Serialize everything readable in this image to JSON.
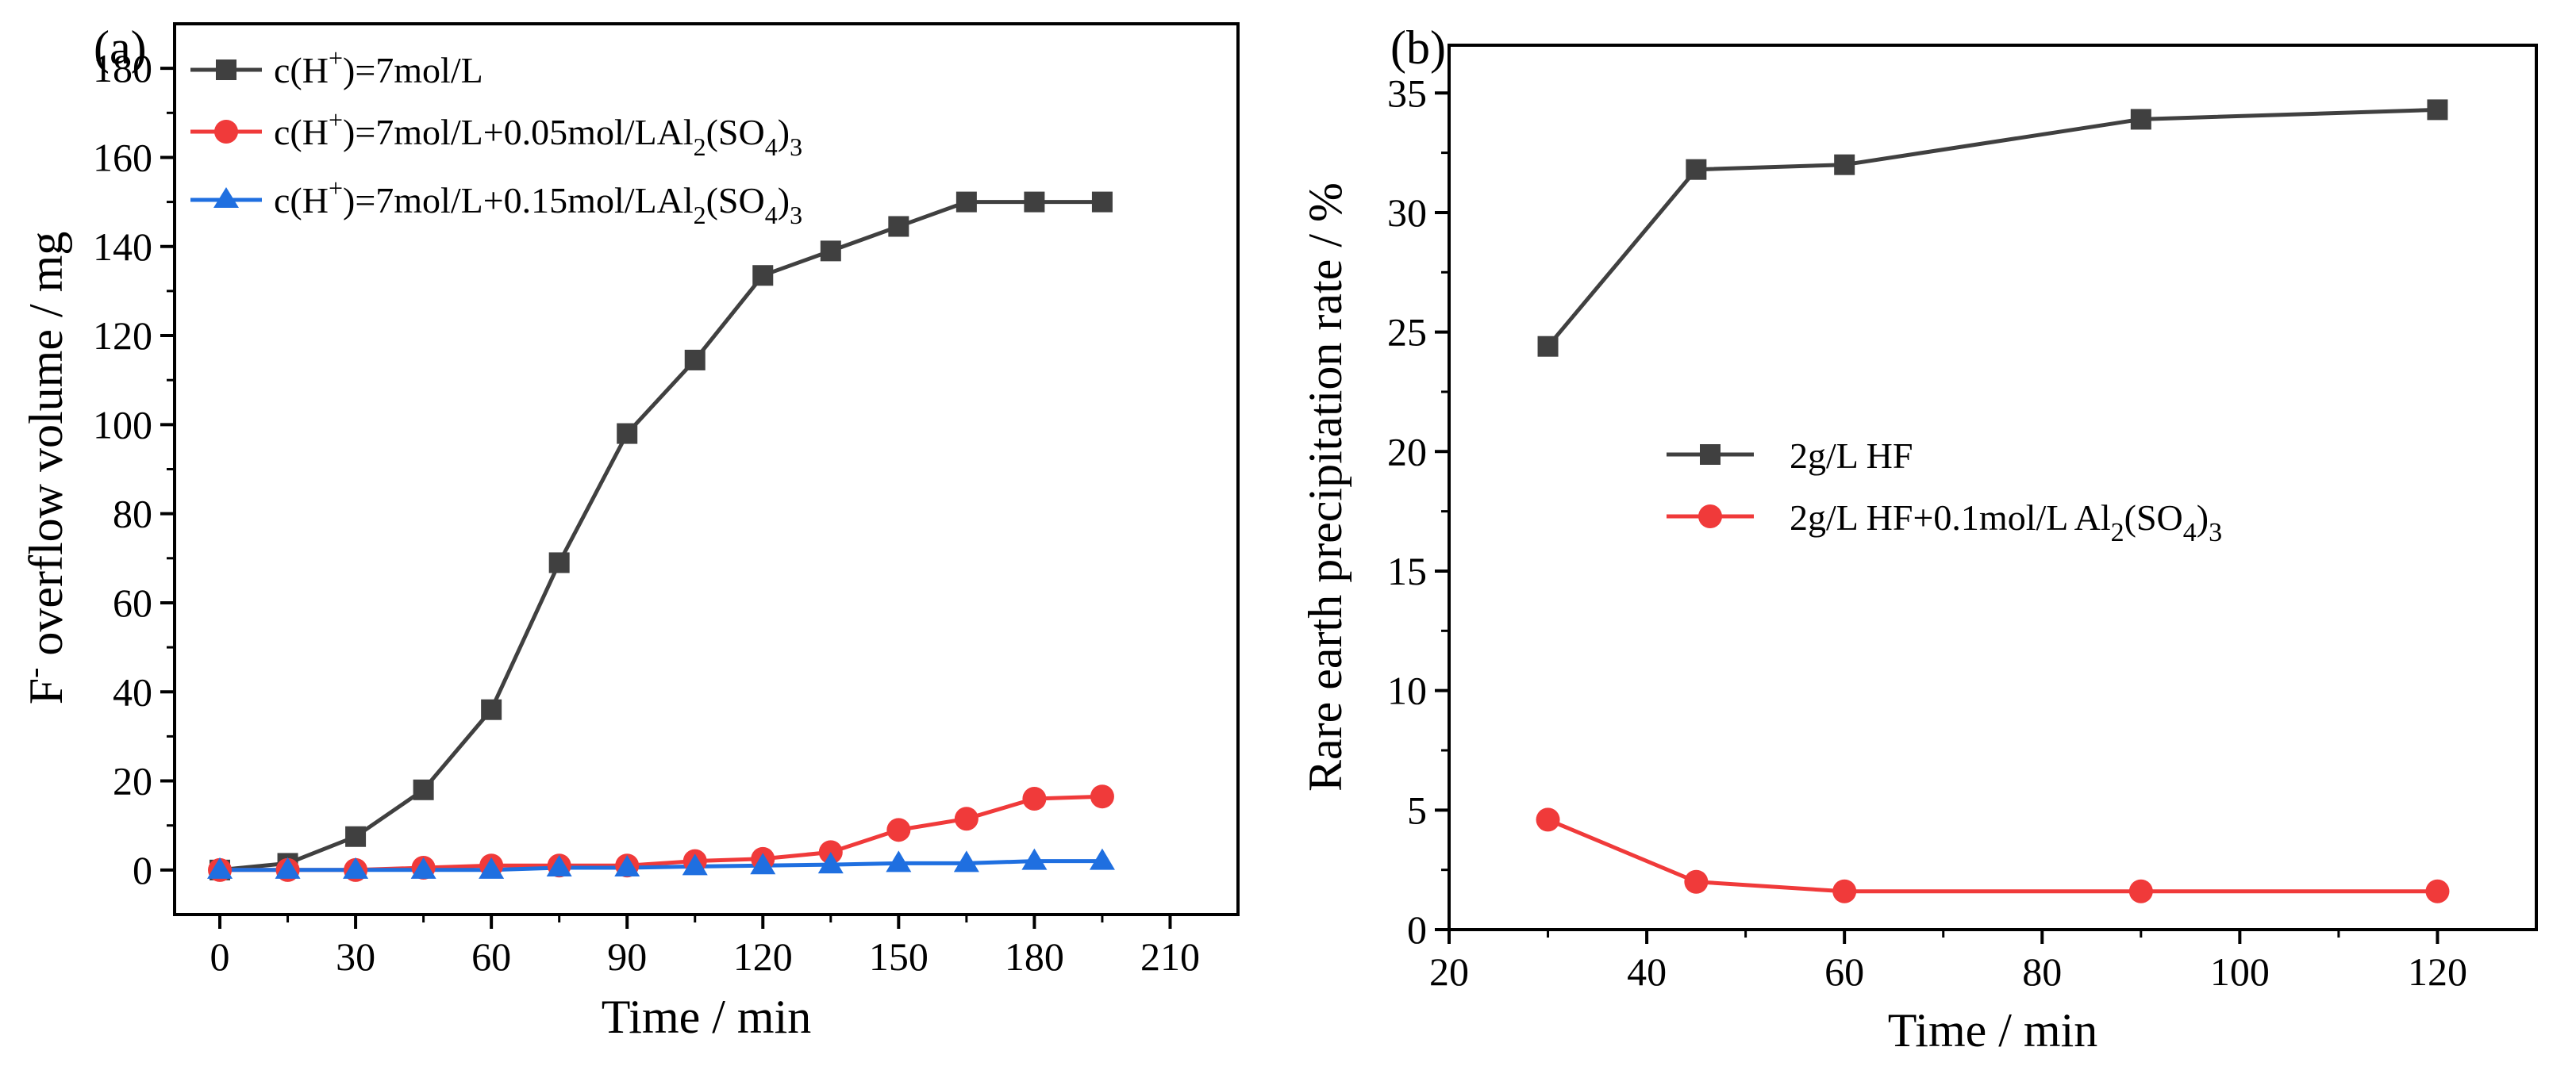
{
  "colors": {
    "series1": "#404040",
    "series2": "#f03a3a",
    "series3": "#1f6fe0"
  },
  "chart_data": [
    {
      "type": "line",
      "panel_label": "(a)",
      "xlabel": "Time / min",
      "ylabel_main": "F",
      "ylabel_sup": "-",
      "ylabel_rest": " overflow volume / mg",
      "xlim": [
        -10,
        225
      ],
      "ylim": [
        -10,
        190
      ],
      "xticks": [
        0,
        30,
        60,
        90,
        120,
        150,
        180,
        210
      ],
      "yticks": [
        0,
        20,
        40,
        60,
        80,
        100,
        120,
        140,
        160,
        180
      ],
      "x": [
        0,
        15,
        30,
        45,
        60,
        75,
        90,
        105,
        120,
        135,
        150,
        165,
        180,
        195
      ],
      "series": [
        {
          "name": "c(H+)=7mol/L",
          "legend": {
            "a": "c(H",
            "sup": "+",
            "b": ")=7mol/L",
            "sub1": "",
            "c": "",
            "sub2": "",
            "d": ""
          },
          "marker": "square",
          "values": [
            0,
            1.5,
            7.5,
            18,
            36,
            69,
            98,
            114.5,
            133.5,
            139,
            144.5,
            150,
            150,
            150
          ]
        },
        {
          "name": "c(H+)=7mol/L+0.05mol/LAl2(SO4)3",
          "legend": {
            "a": "c(H",
            "sup": "+",
            "b": ")=7mol/L+0.05mol/LAl",
            "sub1": "2",
            "c": "(SO",
            "sub2": "4",
            "d": ")",
            "sub3": "3"
          },
          "marker": "circle",
          "values": [
            0,
            0,
            0,
            0.5,
            1,
            1,
            1,
            2,
            2.5,
            4,
            9,
            11.5,
            16,
            16.5
          ]
        },
        {
          "name": "c(H+)=7mol/L+0.15mol/LAl2(SO4)3",
          "legend": {
            "a": "c(H",
            "sup": "+",
            "b": ")=7mol/L+0.15mol/LAl",
            "sub1": "2",
            "c": "(SO",
            "sub2": "4",
            "d": ")",
            "sub3": "3"
          },
          "marker": "triangle",
          "values": [
            0,
            0,
            0,
            0,
            0,
            0.5,
            0.5,
            0.8,
            1,
            1.2,
            1.5,
            1.5,
            2,
            2
          ]
        }
      ]
    },
    {
      "type": "line",
      "panel_label": "(b)",
      "xlabel": "Time / min",
      "ylabel": "Rare earth precipitation rate / %",
      "xlim": [
        20,
        130
      ],
      "ylim": [
        0,
        37
      ],
      "xticks": [
        20,
        40,
        60,
        80,
        100,
        120
      ],
      "yticks": [
        0,
        5,
        10,
        15,
        20,
        25,
        30,
        35
      ],
      "x": [
        30,
        45,
        60,
        90,
        120
      ],
      "series": [
        {
          "name": "2g/L HF",
          "legend": {
            "a": "2g/L HF",
            "sub1": "",
            "b": "",
            "sub2": "",
            "c": "",
            "sub3": ""
          },
          "marker": "square",
          "values": [
            24.4,
            31.8,
            32,
            33.9,
            34.3
          ]
        },
        {
          "name": "2g/L HF+0.1mol/L Al2(SO4)3",
          "legend": {
            "a": "2g/L HF+0.1mol/L Al",
            "sub1": "2",
            "b": "(SO",
            "sub2": "4",
            "c": ")",
            "sub3": "3"
          },
          "marker": "circle",
          "values": [
            4.6,
            2,
            1.6,
            1.6,
            1.6
          ]
        }
      ]
    }
  ]
}
